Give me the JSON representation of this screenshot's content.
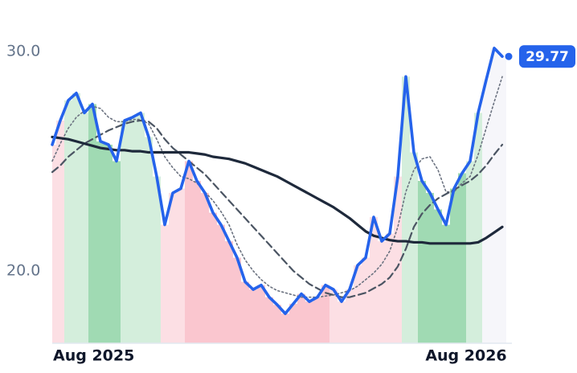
{
  "chart_data": {
    "type": "line",
    "categories": [
      "Aug 2025",
      null,
      null,
      null,
      null,
      null,
      null,
      null,
      null,
      null,
      null,
      null,
      null,
      null,
      null,
      null,
      null,
      null,
      null,
      null,
      null,
      null,
      null,
      null,
      null,
      null,
      null,
      null,
      null,
      null,
      null,
      null,
      null,
      null,
      null,
      null,
      null,
      null,
      null,
      null,
      null,
      null,
      null,
      null,
      null,
      null,
      null,
      null,
      null,
      null,
      null,
      null,
      "Aug 2026",
      null,
      null,
      null,
      null
    ],
    "ylim": [
      16.7,
      30.9
    ],
    "yticks": [
      {
        "value": 20,
        "label": "20.0"
      },
      {
        "value": 30,
        "label": "30.0"
      }
    ],
    "grid": false,
    "band_colors": [
      "#fcd9df",
      "#fcd9df",
      "#cdebd6",
      "#cdebd6",
      "#cdebd6",
      "#8fd3a6",
      "#8fd3a6",
      "#8fd3a6",
      "#8fd3a6",
      "#cdebd6",
      "#cdebd6",
      "#cdebd6",
      "#cdebd6",
      "#cdebd6",
      "#fcd9df",
      "#fcd9df",
      "#fcd9df",
      "#f9bcc7",
      "#f9bcc7",
      "#f9bcc7",
      "#f9bcc7",
      "#f9bcc7",
      "#f9bcc7",
      "#f9bcc7",
      "#f9bcc7",
      "#f9bcc7",
      "#f9bcc7",
      "#f9bcc7",
      "#f9bcc7",
      "#f9bcc7",
      "#f9bcc7",
      "#f9bcc7",
      "#f9bcc7",
      "#f9bcc7",
      "#f9bcc7",
      "#fcd9df",
      "#fcd9df",
      "#fcd9df",
      "#fcd9df",
      "#fcd9df",
      "#fcd9df",
      "#fcd9df",
      "#fcd9df",
      "#fcd9df",
      "#cdebd6",
      "#cdebd6",
      "#8fd3a6",
      "#8fd3a6",
      "#8fd3a6",
      "#8fd3a6",
      "#8fd3a6",
      "#8fd3a6",
      "#cdebd6",
      "#cdebd6",
      "#f4f5f9",
      "#f4f5f9",
      "#f4f5f9"
    ],
    "series": [
      {
        "color": "#6b7280",
        "dash": "dotted",
        "width": 1.6,
        "values": [
          25.0,
          25.8,
          26.5,
          27.0,
          27.3,
          27.5,
          27.4,
          27.0,
          26.8,
          26.8,
          26.9,
          26.9,
          26.7,
          26.0,
          25.2,
          24.7,
          24.3,
          24.2,
          24.0,
          23.6,
          23.2,
          22.7,
          22.1,
          21.2,
          20.5,
          20.0,
          19.6,
          19.3,
          19.1,
          19.0,
          18.9,
          18.8,
          18.8,
          18.8,
          18.85,
          18.9,
          19.0,
          19.1,
          19.3,
          19.6,
          19.9,
          20.3,
          20.9,
          22.0,
          23.6,
          24.6,
          25.1,
          25.2,
          24.6,
          23.6,
          23.6,
          24.0,
          24.3,
          25.3,
          26.5,
          27.7,
          28.85
        ]
      },
      {
        "color": "#4b5563",
        "dash": "dashed",
        "width": 2.2,
        "values": [
          24.5,
          24.8,
          25.2,
          25.5,
          25.8,
          26.0,
          26.2,
          26.4,
          26.55,
          26.7,
          26.8,
          26.85,
          26.8,
          26.5,
          26.0,
          25.6,
          25.3,
          25.0,
          24.7,
          24.4,
          24.0,
          23.6,
          23.2,
          22.8,
          22.4,
          22.0,
          21.6,
          21.2,
          20.8,
          20.4,
          20.0,
          19.7,
          19.4,
          19.2,
          19.0,
          18.9,
          18.8,
          18.8,
          18.9,
          19.0,
          19.2,
          19.4,
          19.7,
          20.2,
          21.0,
          22.0,
          22.6,
          23.0,
          23.3,
          23.5,
          23.7,
          23.9,
          24.1,
          24.4,
          24.8,
          25.3,
          25.75
        ]
      },
      {
        "color": "#1e293b",
        "dash": "solid",
        "width": 3.2,
        "values": [
          26.1,
          26.05,
          26.0,
          25.9,
          25.8,
          25.7,
          25.6,
          25.55,
          25.5,
          25.5,
          25.45,
          25.45,
          25.4,
          25.4,
          25.4,
          25.4,
          25.4,
          25.4,
          25.35,
          25.3,
          25.2,
          25.15,
          25.1,
          25.0,
          24.9,
          24.75,
          24.6,
          24.45,
          24.3,
          24.1,
          23.9,
          23.7,
          23.5,
          23.3,
          23.1,
          22.9,
          22.65,
          22.4,
          22.1,
          21.8,
          21.6,
          21.5,
          21.4,
          21.35,
          21.35,
          21.3,
          21.3,
          21.25,
          21.25,
          21.25,
          21.25,
          21.25,
          21.25,
          21.3,
          21.5,
          21.75,
          22.0
        ]
      },
      {
        "color": "#2563eb",
        "dash": "solid",
        "width": 3.6,
        "values": [
          25.75,
          26.85,
          27.77,
          28.1,
          27.2,
          27.6,
          25.9,
          25.75,
          25.0,
          26.85,
          27.0,
          27.2,
          26.1,
          24.3,
          22.1,
          23.55,
          23.75,
          25.0,
          24.1,
          23.55,
          22.65,
          22.1,
          21.35,
          20.6,
          19.5,
          19.15,
          19.35,
          18.8,
          18.45,
          18.05,
          18.5,
          18.95,
          18.6,
          18.8,
          19.35,
          19.15,
          18.6,
          19.15,
          20.25,
          20.6,
          22.45,
          21.35,
          21.7,
          24.3,
          28.85,
          25.4,
          24.1,
          23.55,
          22.8,
          22.1,
          23.75,
          24.45,
          25.0,
          27.2,
          28.7,
          30.15,
          29.77
        ]
      }
    ]
  }
}
